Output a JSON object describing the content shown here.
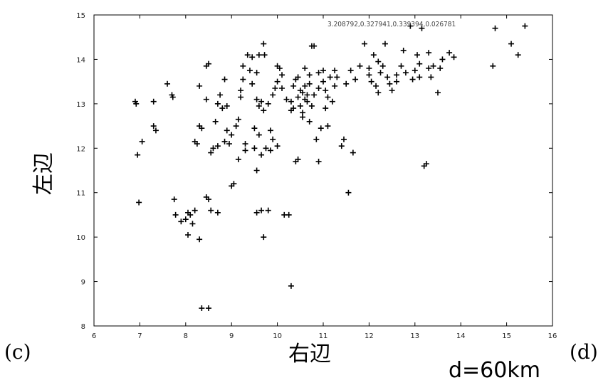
{
  "labels": {
    "left_panel": "(c)",
    "right_panel": "(d)",
    "xlabel": "右辺",
    "ylabel": "左辺",
    "distance": "d=60km"
  },
  "chart_data": {
    "type": "scatter",
    "title": "",
    "xlabel": "右辺",
    "ylabel": "左辺",
    "xlim": [
      6,
      16
    ],
    "ylim": [
      8,
      15
    ],
    "xticks": [
      6,
      7,
      8,
      9,
      10,
      11,
      12,
      13,
      14,
      15,
      16
    ],
    "yticks": [
      8,
      9,
      10,
      11,
      12,
      13,
      14,
      15
    ],
    "annotation": "3.208792,0.327941,0.339394,0.026781",
    "grid": false,
    "marker": "+",
    "points": [
      [
        6.9,
        13.05
      ],
      [
        6.92,
        13.0
      ],
      [
        6.95,
        11.85
      ],
      [
        6.98,
        10.78
      ],
      [
        7.05,
        12.15
      ],
      [
        7.3,
        13.05
      ],
      [
        7.3,
        12.5
      ],
      [
        7.35,
        12.4
      ],
      [
        7.6,
        13.45
      ],
      [
        7.7,
        13.2
      ],
      [
        7.72,
        13.15
      ],
      [
        7.75,
        10.85
      ],
      [
        7.78,
        10.5
      ],
      [
        7.9,
        10.35
      ],
      [
        8.0,
        10.4
      ],
      [
        8.05,
        10.55
      ],
      [
        8.1,
        10.5
      ],
      [
        8.2,
        10.6
      ],
      [
        8.05,
        10.05
      ],
      [
        8.15,
        10.3
      ],
      [
        8.3,
        9.95
      ],
      [
        8.35,
        8.4
      ],
      [
        8.5,
        8.4
      ],
      [
        8.2,
        12.15
      ],
      [
        8.25,
        12.1
      ],
      [
        8.3,
        12.5
      ],
      [
        8.35,
        12.45
      ],
      [
        8.3,
        13.4
      ],
      [
        8.45,
        13.1
      ],
      [
        8.45,
        13.85
      ],
      [
        8.5,
        13.9
      ],
      [
        8.45,
        10.9
      ],
      [
        8.5,
        10.85
      ],
      [
        8.55,
        10.6
      ],
      [
        8.7,
        10.55
      ],
      [
        8.55,
        11.9
      ],
      [
        8.6,
        12.0
      ],
      [
        8.65,
        12.6
      ],
      [
        8.7,
        12.05
      ],
      [
        8.7,
        13.0
      ],
      [
        8.75,
        13.2
      ],
      [
        8.8,
        12.9
      ],
      [
        8.85,
        12.15
      ],
      [
        8.85,
        13.55
      ],
      [
        8.9,
        12.4
      ],
      [
        8.9,
        12.95
      ],
      [
        8.95,
        12.1
      ],
      [
        9.0,
        12.3
      ],
      [
        9.0,
        11.15
      ],
      [
        9.05,
        11.2
      ],
      [
        9.1,
        12.5
      ],
      [
        9.15,
        11.75
      ],
      [
        9.15,
        12.65
      ],
      [
        9.2,
        13.15
      ],
      [
        9.2,
        13.3
      ],
      [
        9.25,
        13.55
      ],
      [
        9.25,
        13.85
      ],
      [
        9.3,
        11.95
      ],
      [
        9.3,
        12.1
      ],
      [
        9.35,
        14.1
      ],
      [
        9.4,
        13.75
      ],
      [
        9.45,
        13.45
      ],
      [
        9.45,
        14.05
      ],
      [
        9.5,
        12.45
      ],
      [
        9.5,
        12.0
      ],
      [
        9.55,
        11.5
      ],
      [
        9.55,
        10.55
      ],
      [
        9.55,
        13.7
      ],
      [
        9.6,
        14.1
      ],
      [
        9.6,
        12.3
      ],
      [
        9.65,
        13.05
      ],
      [
        9.65,
        11.85
      ],
      [
        9.65,
        10.6
      ],
      [
        9.7,
        10.0
      ],
      [
        9.7,
        12.85
      ],
      [
        9.7,
        14.35
      ],
      [
        9.72,
        14.1
      ],
      [
        9.75,
        12.0
      ],
      [
        9.8,
        10.6
      ],
      [
        9.8,
        13.0
      ],
      [
        9.85,
        12.4
      ],
      [
        9.85,
        11.95
      ],
      [
        9.9,
        12.2
      ],
      [
        9.9,
        13.2
      ],
      [
        9.95,
        13.35
      ],
      [
        10.0,
        13.5
      ],
      [
        10.0,
        12.05
      ],
      [
        10.0,
        13.85
      ],
      [
        10.05,
        13.8
      ],
      [
        10.1,
        13.35
      ],
      [
        10.15,
        10.5
      ],
      [
        10.2,
        13.1
      ],
      [
        10.25,
        10.5
      ],
      [
        10.3,
        8.9
      ],
      [
        10.3,
        13.05
      ],
      [
        10.35,
        13.4
      ],
      [
        10.4,
        13.55
      ],
      [
        10.4,
        11.7
      ],
      [
        10.45,
        11.75
      ],
      [
        10.45,
        13.15
      ],
      [
        10.5,
        12.95
      ],
      [
        10.5,
        13.3
      ],
      [
        10.55,
        12.8
      ],
      [
        10.6,
        13.4
      ],
      [
        10.6,
        13.8
      ],
      [
        10.65,
        13.05
      ],
      [
        10.7,
        12.6
      ],
      [
        10.7,
        13.65
      ],
      [
        10.75,
        14.3
      ],
      [
        10.8,
        14.3
      ],
      [
        10.8,
        13.2
      ],
      [
        10.85,
        12.2
      ],
      [
        10.9,
        13.7
      ],
      [
        10.9,
        11.7
      ],
      [
        10.95,
        12.45
      ],
      [
        11.0,
        13.5
      ],
      [
        11.0,
        13.75
      ],
      [
        11.05,
        12.9
      ],
      [
        11.1,
        12.5
      ],
      [
        11.1,
        13.15
      ],
      [
        11.15,
        13.6
      ],
      [
        11.2,
        13.05
      ],
      [
        11.25,
        13.75
      ],
      [
        11.4,
        12.05
      ],
      [
        11.45,
        12.2
      ],
      [
        11.5,
        13.45
      ],
      [
        11.55,
        11.0
      ],
      [
        11.6,
        13.75
      ],
      [
        11.65,
        11.9
      ],
      [
        11.7,
        13.55
      ],
      [
        11.8,
        13.85
      ],
      [
        11.9,
        14.35
      ],
      [
        12.0,
        13.8
      ],
      [
        12.05,
        13.5
      ],
      [
        12.1,
        14.1
      ],
      [
        12.15,
        13.4
      ],
      [
        12.2,
        13.25
      ],
      [
        12.25,
        13.7
      ],
      [
        12.3,
        13.85
      ],
      [
        12.35,
        14.35
      ],
      [
        12.4,
        13.6
      ],
      [
        12.45,
        13.45
      ],
      [
        12.5,
        13.3
      ],
      [
        12.6,
        13.5
      ],
      [
        12.7,
        13.85
      ],
      [
        12.75,
        14.2
      ],
      [
        12.8,
        13.7
      ],
      [
        12.9,
        14.75
      ],
      [
        12.95,
        13.55
      ],
      [
        13.0,
        13.75
      ],
      [
        13.05,
        14.1
      ],
      [
        13.1,
        13.9
      ],
      [
        13.15,
        14.7
      ],
      [
        13.2,
        11.6
      ],
      [
        13.25,
        11.65
      ],
      [
        13.3,
        14.15
      ],
      [
        13.35,
        13.6
      ],
      [
        13.4,
        13.85
      ],
      [
        13.5,
        13.25
      ],
      [
        13.55,
        13.8
      ],
      [
        13.6,
        14.0
      ],
      [
        13.75,
        14.15
      ],
      [
        13.85,
        14.05
      ],
      [
        14.7,
        13.85
      ],
      [
        14.75,
        14.7
      ],
      [
        15.1,
        14.35
      ],
      [
        15.25,
        14.1
      ],
      [
        15.4,
        14.75
      ],
      [
        10.55,
        13.25
      ],
      [
        10.65,
        13.2
      ],
      [
        10.35,
        12.9
      ],
      [
        10.6,
        13.1
      ],
      [
        10.9,
        13.35
      ],
      [
        11.05,
        13.3
      ],
      [
        10.45,
        13.6
      ],
      [
        10.3,
        12.85
      ],
      [
        10.75,
        12.95
      ],
      [
        11.3,
        13.6
      ],
      [
        12.0,
        13.65
      ],
      [
        12.2,
        13.95
      ],
      [
        12.6,
        13.65
      ],
      [
        13.1,
        13.6
      ],
      [
        13.3,
        13.8
      ],
      [
        10.55,
        12.7
      ],
      [
        9.55,
        13.1
      ],
      [
        9.6,
        12.95
      ],
      [
        10.1,
        13.65
      ],
      [
        10.7,
        13.45
      ],
      [
        11.25,
        13.4
      ]
    ]
  }
}
